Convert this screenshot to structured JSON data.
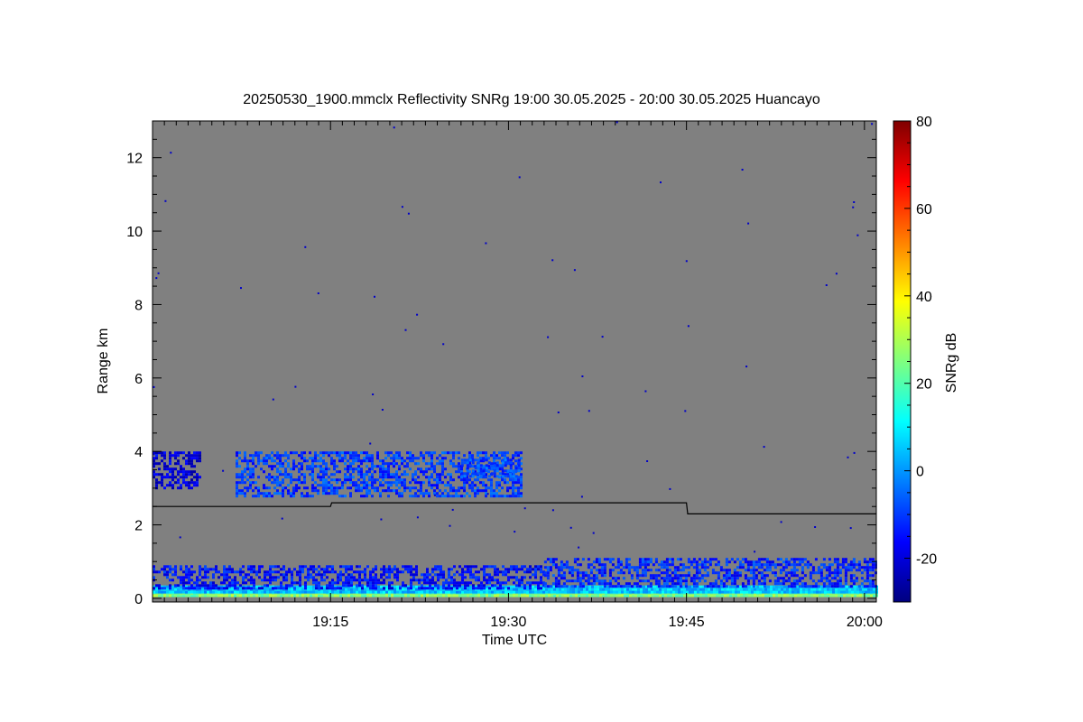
{
  "chart_data": {
    "type": "heatmap",
    "title": "20250530_1900.mmclx Reflectivity SNRg   19:00 30.05.2025 - 20:00 30.05.2025 Huancayo",
    "xlabel": "Time UTC",
    "ylabel": "Range km",
    "x_unit": "minutes after 19:00 UTC",
    "xlim": [
      0,
      61
    ],
    "ylim": [
      -0.1,
      13
    ],
    "x_ticks": [
      {
        "value": 15,
        "label": "19:15"
      },
      {
        "value": 30,
        "label": "19:30"
      },
      {
        "value": 45,
        "label": "19:45"
      },
      {
        "value": 60,
        "label": "20:00"
      }
    ],
    "y_ticks": [
      {
        "value": 0,
        "label": "0"
      },
      {
        "value": 2,
        "label": "2"
      },
      {
        "value": 4,
        "label": "4"
      },
      {
        "value": 6,
        "label": "6"
      },
      {
        "value": 8,
        "label": "8"
      },
      {
        "value": 10,
        "label": "10"
      },
      {
        "value": 12,
        "label": "12"
      }
    ],
    "background_color": "#808080",
    "colorbar": {
      "label": "SNRg dB",
      "range": [
        -30,
        80
      ],
      "ticks": [
        {
          "value": -20,
          "label": "-20"
        },
        {
          "value": 0,
          "label": "0"
        },
        {
          "value": 20,
          "label": "20"
        },
        {
          "value": 40,
          "label": "40"
        },
        {
          "value": 60,
          "label": "60"
        },
        {
          "value": 80,
          "label": "80"
        }
      ],
      "colormap": [
        "#00007f",
        "#0000ff",
        "#007fff",
        "#00ffff",
        "#7fff7f",
        "#ffff00",
        "#ff7f00",
        "#ff0000",
        "#7f0000"
      ]
    },
    "line_series": {
      "color": "#000000",
      "points": [
        [
          0,
          2.5
        ],
        [
          15,
          2.5
        ],
        [
          15.1,
          2.6
        ],
        [
          45,
          2.6
        ],
        [
          45.1,
          2.3
        ],
        [
          61,
          2.3
        ]
      ]
    },
    "regions": [
      {
        "x": [
          0,
          61
        ],
        "y": [
          0.05,
          0.18
        ],
        "snr": 25
      },
      {
        "x": [
          0,
          61
        ],
        "y": [
          0.15,
          0.35
        ],
        "snr": 5
      },
      {
        "x": [
          0,
          33
        ],
        "y": [
          0.3,
          0.9
        ],
        "snr": -15
      },
      {
        "x": [
          33,
          61
        ],
        "y": [
          0.3,
          1.1
        ],
        "snr": -12
      },
      {
        "x": [
          0,
          4
        ],
        "y": [
          3.0,
          4.0
        ],
        "snr": -20
      },
      {
        "x": [
          7,
          31
        ],
        "y": [
          2.8,
          4.0
        ],
        "snr": -10
      },
      {
        "x": [
          26,
          31
        ],
        "y": [
          3.3,
          3.8
        ],
        "snr": -8
      }
    ]
  }
}
